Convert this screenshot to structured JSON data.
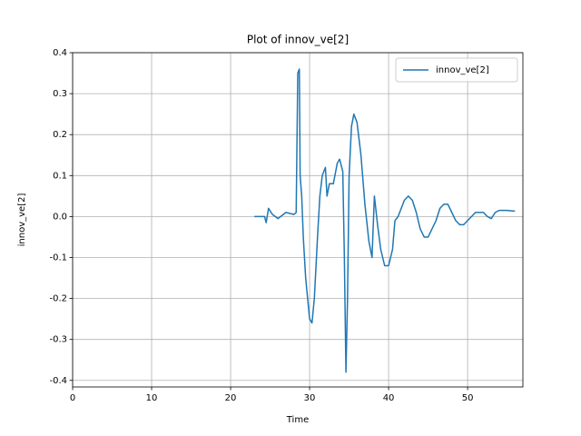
{
  "chart_data": {
    "type": "line",
    "title": "Plot of innov_ve[2]",
    "xlabel": "Time",
    "ylabel": "innov_ve[2]",
    "xlim": [
      0,
      57
    ],
    "ylim": [
      -0.416,
      0.4
    ],
    "xticks": [
      0,
      10,
      20,
      30,
      40,
      50
    ],
    "yticks": [
      -0.4,
      -0.3,
      -0.2,
      -0.1,
      {
        "value": 0,
        "label": "0.0"
      },
      0.1,
      0.2,
      0.3,
      0.4
    ],
    "grid": true,
    "legend": "upper right",
    "series": [
      {
        "name": "innov_ve[2]",
        "color": "#1f77b4",
        "x": [
          23,
          24.3,
          24.5,
          24.8,
          25.3,
          26,
          27,
          28,
          28.3,
          28.5,
          28.7,
          28.8,
          29,
          29.2,
          29.5,
          30,
          30.3,
          30.6,
          31,
          31.3,
          31.6,
          32,
          32.2,
          32.5,
          33,
          33.5,
          33.8,
          34.2,
          34.4,
          34.6,
          34.8,
          35,
          35.3,
          35.6,
          36,
          36.5,
          37,
          37.5,
          37.9,
          38.2,
          38.6,
          39,
          39.5,
          40,
          40.5,
          40.8,
          41.2,
          42,
          42.5,
          43,
          43.5,
          44,
          44.5,
          45,
          45.5,
          46,
          46.5,
          47,
          47.5,
          48,
          48.5,
          49,
          49.5,
          50,
          50.5,
          51,
          52,
          52.5,
          53,
          53.5,
          54,
          55,
          56
        ],
        "values": [
          0,
          0,
          -0.015,
          0.02,
          0.005,
          -0.005,
          0.01,
          0.005,
          0.01,
          0.35,
          0.36,
          0.1,
          0.05,
          -0.05,
          -0.15,
          -0.25,
          -0.26,
          -0.2,
          -0.05,
          0.05,
          0.1,
          0.12,
          0.05,
          0.08,
          0.08,
          0.13,
          0.14,
          0.11,
          -0.1,
          -0.38,
          -0.2,
          0.1,
          0.22,
          0.25,
          0.23,
          0.15,
          0.03,
          -0.06,
          -0.1,
          0.05,
          -0.02,
          -0.08,
          -0.12,
          -0.12,
          -0.08,
          -0.01,
          0,
          0.04,
          0.05,
          0.04,
          0.01,
          -0.03,
          -0.05,
          -0.05,
          -0.03,
          -0.01,
          0.02,
          0.03,
          0.03,
          0.01,
          -0.01,
          -0.02,
          -0.02,
          -0.01,
          0,
          0.01,
          0.01,
          0,
          -0.005,
          0.01,
          0.015,
          0.015,
          0.013
        ]
      }
    ]
  }
}
